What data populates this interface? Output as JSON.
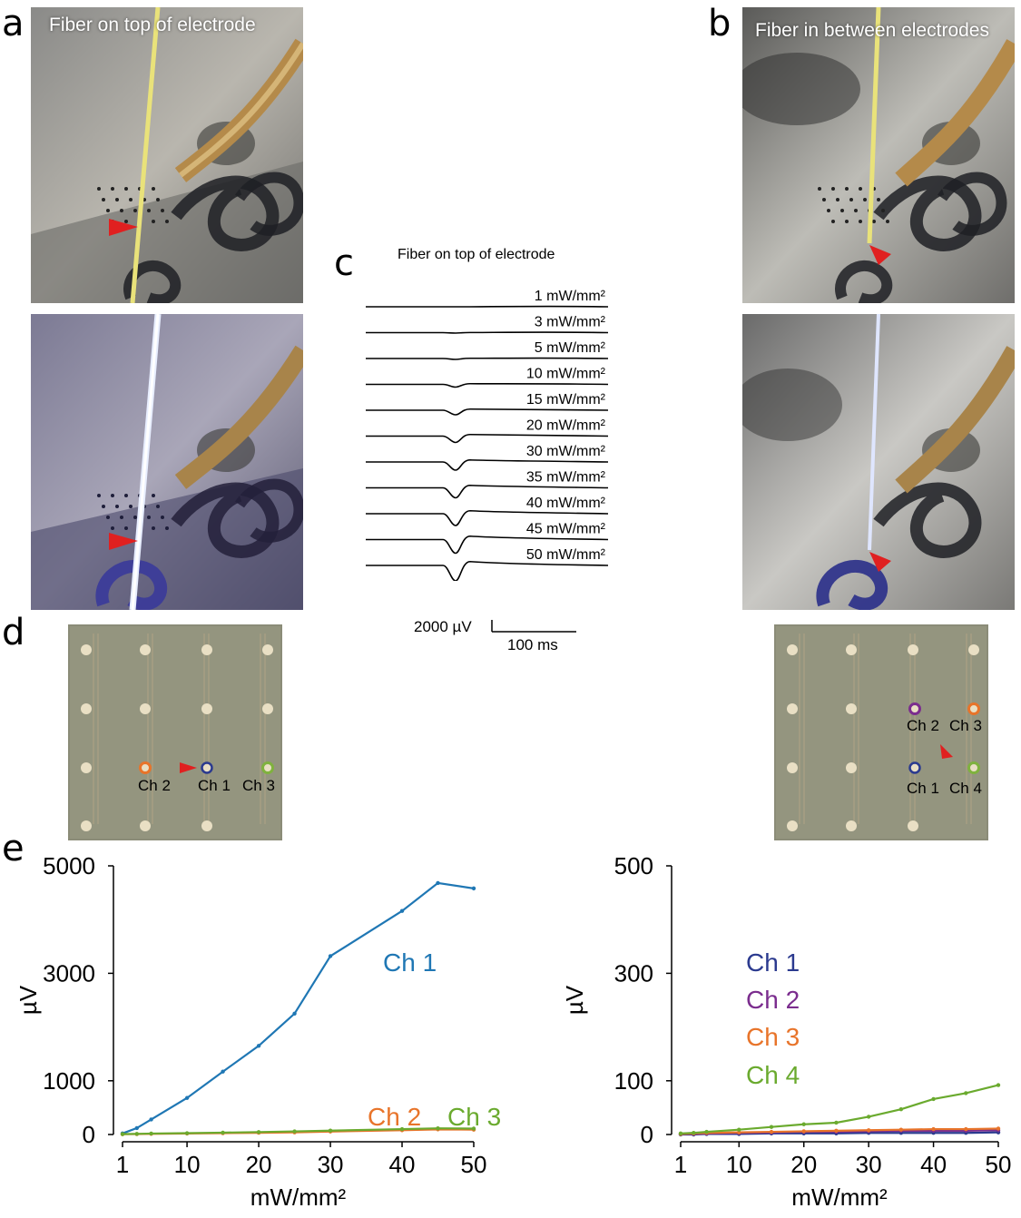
{
  "panel_labels": {
    "a": "a",
    "b": "b",
    "c": "c",
    "d": "d",
    "e": "e"
  },
  "photos": {
    "a_title": "Fiber on top of electrode",
    "b_title": "Fiber in between electrodes"
  },
  "traces": {
    "title": "Fiber on top of electrode",
    "labels": [
      "1 mW/mm²",
      "3 mW/mm²",
      "5 mW/mm²",
      "10 mW/mm²",
      "15 mW/mm²",
      "20 mW/mm²",
      "30 mW/mm²",
      "35 mW/mm²",
      "40 mW/mm²",
      "45 mW/mm²",
      "50 mW/mm²"
    ],
    "scalebar_amplitude": "2000 µV",
    "scalebar_time": "100 ms"
  },
  "arrays": {
    "left_labels": [
      "Ch 2",
      "Ch 1",
      "Ch 3"
    ],
    "right_labels": [
      "Ch 2",
      "Ch 3",
      "Ch 1",
      "Ch 4"
    ],
    "colors": {
      "ch1": "#2b3a8f",
      "ch2": "#7b2d8e",
      "ch3": "#e8742a",
      "ch4": "#7fb23e"
    }
  },
  "chart_data": [
    {
      "type": "line",
      "title": "",
      "xlabel": "mW/mm²",
      "ylabel": "µV",
      "x": [
        1,
        3,
        5,
        10,
        15,
        20,
        25,
        30,
        40,
        45,
        50
      ],
      "xticks": [
        1,
        10,
        20,
        30,
        40,
        50
      ],
      "yticks": [
        0,
        1000,
        3000,
        5000
      ],
      "ylim": [
        0,
        5000
      ],
      "series": [
        {
          "name": "Ch 1",
          "color": "#1f77b4",
          "values": [
            20,
            120,
            280,
            680,
            1170,
            1650,
            2250,
            3320,
            4160,
            4680,
            4580
          ]
        },
        {
          "name": "Ch 2",
          "color": "#e8742a",
          "values": [
            5,
            8,
            12,
            18,
            25,
            32,
            40,
            55,
            80,
            95,
            90
          ]
        },
        {
          "name": "Ch 3",
          "color": "#6aaa2e",
          "values": [
            8,
            12,
            18,
            25,
            35,
            45,
            58,
            72,
            100,
            115,
            110
          ]
        }
      ]
    },
    {
      "type": "line",
      "title": "",
      "xlabel": "mW/mm²",
      "ylabel": "µV",
      "x": [
        1,
        3,
        5,
        10,
        15,
        20,
        25,
        30,
        35,
        40,
        45,
        50
      ],
      "xticks": [
        1,
        10,
        20,
        30,
        40,
        50
      ],
      "yticks": [
        0,
        100,
        300,
        500
      ],
      "ylim": [
        0,
        500
      ],
      "series": [
        {
          "name": "Ch 1",
          "color": "#2b3a8f",
          "values": [
            0,
            0,
            1,
            1,
            2,
            2,
            2,
            3,
            3,
            3,
            3,
            4
          ]
        },
        {
          "name": "Ch 2",
          "color": "#7b2d8e",
          "values": [
            1,
            1,
            2,
            3,
            4,
            5,
            5,
            6,
            7,
            7,
            7,
            8
          ]
        },
        {
          "name": "Ch 3",
          "color": "#e8742a",
          "values": [
            1,
            2,
            3,
            4,
            5,
            6,
            7,
            8,
            9,
            10,
            10,
            11
          ]
        },
        {
          "name": "Ch 4",
          "color": "#6aaa2e",
          "values": [
            2,
            3,
            5,
            9,
            14,
            19,
            22,
            33,
            47,
            66,
            77,
            92
          ]
        }
      ]
    }
  ]
}
